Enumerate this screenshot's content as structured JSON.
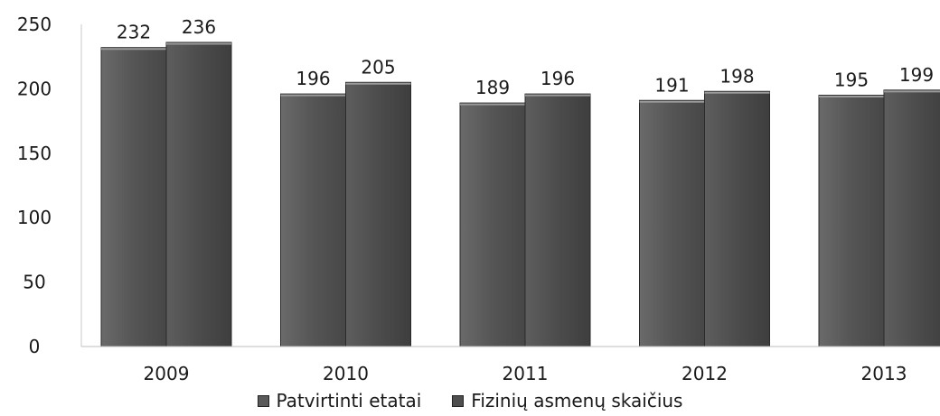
{
  "chart_data": {
    "type": "bar",
    "categories": [
      "2009",
      "2010",
      "2011",
      "2012",
      "2013"
    ],
    "series": [
      {
        "name": "Patvirtinti etatai",
        "values": [
          232,
          196,
          189,
          191,
          195
        ],
        "color": "#5a5a5a"
      },
      {
        "name": "Fizinių asmenų skaičius",
        "values": [
          236,
          205,
          196,
          198,
          199
        ],
        "color": "#4e4e4e"
      }
    ],
    "ylim": [
      0,
      250
    ],
    "yticks": [
      "0",
      "50",
      "100",
      "150",
      "200",
      "250"
    ],
    "grid": false,
    "legend": "bottom",
    "title": "",
    "xlabel": "",
    "ylabel": ""
  }
}
